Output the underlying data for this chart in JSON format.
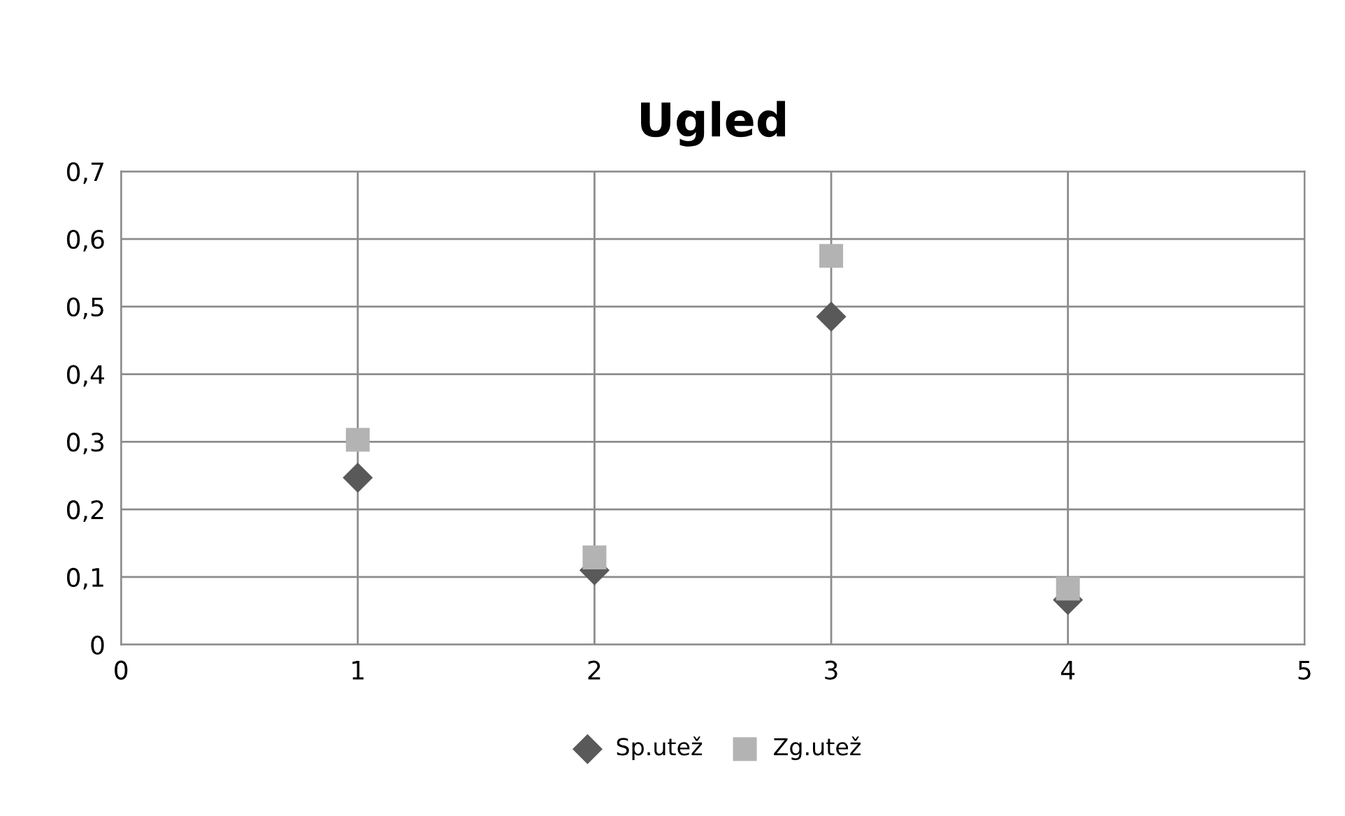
{
  "chart_data": {
    "type": "scatter",
    "title": "Ugled",
    "xlim": [
      0,
      5
    ],
    "xticks": [
      0,
      1,
      2,
      3,
      4,
      5
    ],
    "ylim": [
      0,
      0.7
    ],
    "yticks": [
      {
        "value": 0,
        "label": "0"
      },
      {
        "value": 0.1,
        "label": "0,1"
      },
      {
        "value": 0.2,
        "label": "0,2"
      },
      {
        "value": 0.3,
        "label": "0,3"
      },
      {
        "value": 0.4,
        "label": "0,4"
      },
      {
        "value": 0.5,
        "label": "0,5"
      },
      {
        "value": 0.6,
        "label": "0,6"
      },
      {
        "value": 0.7,
        "label": "0,7"
      }
    ],
    "grid": true,
    "legend": "bottom",
    "series": [
      {
        "name": "Sp.utež",
        "color": "#595959",
        "marker": "diamond",
        "x": [
          1,
          2,
          3,
          4
        ],
        "values": [
          0.247,
          0.11,
          0.485,
          0.066
        ]
      },
      {
        "name": "Zg.utež",
        "color": "#b3b3b3",
        "marker": "square",
        "x": [
          1,
          2,
          3,
          4
        ],
        "values": [
          0.303,
          0.129,
          0.575,
          0.083
        ]
      }
    ]
  }
}
